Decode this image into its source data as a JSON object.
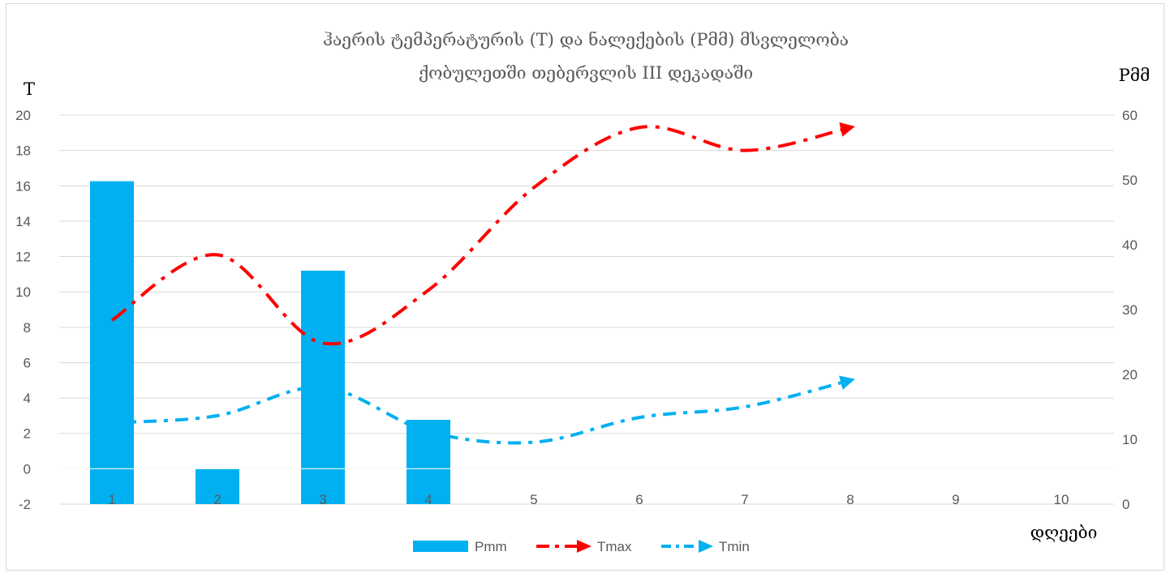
{
  "chart_data": {
    "type": "bar+line",
    "title_line1": "ჰაერის ტემპერატურის (T) და ნალექების (Pმმ) მსვლელობა",
    "title_line2": "ქობულეთში თებერვლის III დეკადაში",
    "y_left_label": "T",
    "y_right_label": "Pმმ",
    "x_label": "დღეები",
    "categories": [
      "1",
      "2",
      "3",
      "4",
      "5",
      "6",
      "7",
      "8",
      "9",
      "10"
    ],
    "y_left_ticks": [
      "20",
      "18",
      "16",
      "14",
      "12",
      "10",
      "8",
      "6",
      "4",
      "2",
      "0",
      "-2"
    ],
    "y_left_ticks_values": [
      20,
      18,
      16,
      14,
      12,
      10,
      8,
      6,
      4,
      2,
      0,
      -2
    ],
    "y_right_ticks": [
      "60",
      "50",
      "40",
      "30",
      "20",
      "10",
      "0"
    ],
    "y_right_ticks_values": [
      60,
      50,
      40,
      30,
      20,
      10,
      0
    ],
    "ylim_left": [
      -2,
      20
    ],
    "ylim_right": [
      0,
      60
    ],
    "grid": true,
    "legend_position": "bottom",
    "series": [
      {
        "name": "Pmm",
        "type": "bar",
        "axis": "right",
        "color": "#00b0f0",
        "values": [
          49.8,
          5.5,
          36,
          13,
          null,
          null,
          null,
          null,
          null,
          null
        ]
      },
      {
        "name": "Tmax",
        "type": "line",
        "axis": "left",
        "color": "#ff0000",
        "dash": "long-dash-dot",
        "values": [
          8.4,
          12.1,
          7.1,
          10.1,
          15.9,
          19.3,
          18,
          19.3,
          null,
          null
        ]
      },
      {
        "name": "Tmin",
        "type": "line",
        "axis": "left",
        "color": "#00b0f0",
        "dash": "dash-dot",
        "values": [
          2.6,
          3,
          4.6,
          2.1,
          1.5,
          2.9,
          3.5,
          5,
          null,
          null
        ]
      }
    ]
  }
}
